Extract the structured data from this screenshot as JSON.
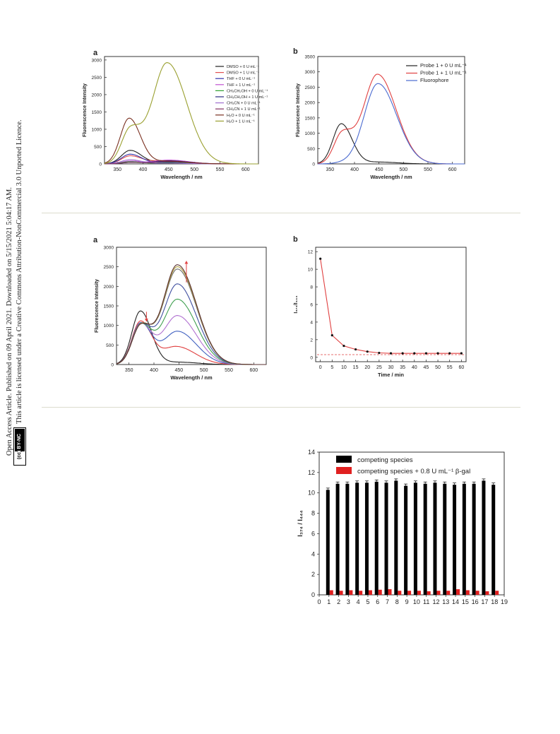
{
  "sidebar": {
    "line1": "Open Access Article. Published on 09 April 2021. Downloaded on 5/15/2021 5:04:17 AM.",
    "line2": "This article is licensed under a Creative Commons Attribution-NonCommercial 3.0 Unported Licence.",
    "badge": "(cc) BY-NC"
  },
  "colors": {
    "divider": "#dcdccd"
  },
  "chart_data": [
    {
      "panel": "a",
      "type": "line",
      "xlabel": "Wavelength / nm",
      "ylabel": "Fluorescence Intensity",
      "xlim": [
        325,
        625
      ],
      "ylim": [
        0,
        3100
      ],
      "xticks": [
        350,
        400,
        450,
        500,
        550,
        600
      ],
      "yticks": [
        0,
        500,
        1000,
        1500,
        2000,
        2500,
        3000
      ],
      "legend_position": "top-right",
      "series": [
        {
          "name": "DMSO + 0 U mL⁻¹",
          "color": "#222222",
          "peak": [
            375,
            390
          ],
          "peak2": [
            450,
            60
          ]
        },
        {
          "name": "DMSO + 1 U mL⁻¹",
          "color": "#e05050",
          "peak": [
            375,
            230
          ],
          "peak2": [
            445,
            100
          ]
        },
        {
          "name": "THF + 0 U mL⁻¹",
          "color": "#3333aa",
          "peak": [
            375,
            280
          ],
          "peak2": [
            450,
            40
          ]
        },
        {
          "name": "THF + 1 U mL⁻¹",
          "color": "#c050d0",
          "peak": [
            375,
            80
          ],
          "peak2": [
            450,
            110
          ]
        },
        {
          "name": "CH₃CH₂OH + 0 U mL⁻¹",
          "color": "#30a030",
          "peak": [
            375,
            60
          ],
          "peak2": [
            450,
            30
          ]
        },
        {
          "name": "CH₃CH₂OH + 1 U mL⁻¹",
          "color": "#2a2a80",
          "peak": [
            375,
            40
          ],
          "peak2": [
            450,
            90
          ]
        },
        {
          "name": "CH₃CN + 0 U mL⁻¹",
          "color": "#a070d0",
          "peak": [
            375,
            120
          ],
          "peak2": [
            450,
            20
          ]
        },
        {
          "name": "CH₃CN + 1 U mL⁻¹",
          "color": "#803060",
          "peak": [
            375,
            40
          ],
          "peak2": [
            450,
            70
          ]
        },
        {
          "name": "H₂O + 0 U mL⁻¹",
          "color": "#7a3020",
          "peak": [
            373,
            1320
          ],
          "peak2": [
            450,
            80
          ]
        },
        {
          "name": "H₂O + 1 U mL⁻¹",
          "color": "#9aa030",
          "peak": [
            375,
            980
          ],
          "peak2": [
            447,
            2920
          ]
        }
      ]
    },
    {
      "panel": "b",
      "type": "line",
      "xlabel": "Wavelength / nm",
      "ylabel": "Fluorescence Intensity",
      "xlim": [
        325,
        625
      ],
      "ylim": [
        0,
        3500
      ],
      "xticks": [
        350,
        400,
        450,
        500,
        550,
        600
      ],
      "yticks": [
        0,
        500,
        1000,
        1500,
        2000,
        2500,
        3000,
        3500
      ],
      "legend_position": "top-right",
      "series": [
        {
          "name": "Probe 1 + 0 U mL⁻¹",
          "color": "#222222",
          "peak": [
            373,
            1310
          ],
          "peak2": [
            450,
            60
          ]
        },
        {
          "name": "Probe 1 + 1 U mL⁻¹",
          "color": "#e04040",
          "peak": [
            375,
            980
          ],
          "peak2": [
            447,
            2920
          ]
        },
        {
          "name": "Fluorophore",
          "color": "#4a6ad0",
          "peak": [
            375,
            30
          ],
          "peak2": [
            448,
            2620
          ]
        }
      ]
    },
    {
      "panel": "a",
      "type": "line",
      "xlabel": "Wavelength / nm",
      "ylabel": "Fluorescence Intensity",
      "xlim": [
        325,
        625
      ],
      "ylim": [
        0,
        3000
      ],
      "xticks": [
        350,
        400,
        450,
        500,
        550,
        600
      ],
      "yticks": [
        0,
        500,
        1000,
        1500,
        2000,
        2500,
        3000
      ],
      "series": [
        {
          "color": "#222222",
          "peak": [
            373,
            1370
          ],
          "peak2": [
            450,
            60
          ]
        },
        {
          "color": "#e04040",
          "peak": [
            373,
            1100
          ],
          "peak2": [
            445,
            460
          ]
        },
        {
          "color": "#4060c0",
          "peak": [
            373,
            1050
          ],
          "peak2": [
            447,
            850
          ]
        },
        {
          "color": "#b070d0",
          "peak": [
            373,
            1020
          ],
          "peak2": [
            447,
            1250
          ]
        },
        {
          "color": "#40a050",
          "peak": [
            373,
            1000
          ],
          "peak2": [
            447,
            1670
          ]
        },
        {
          "color": "#4050a0",
          "peak": [
            373,
            990
          ],
          "peak2": [
            447,
            2060
          ]
        },
        {
          "color": "#707070",
          "peak": [
            373,
            980
          ],
          "peak2": [
            447,
            2440
          ]
        },
        {
          "color": "#b0a040",
          "peak": [
            373,
            970
          ],
          "peak2": [
            447,
            2500
          ]
        },
        {
          "color": "#5a3030",
          "peak": [
            373,
            960
          ],
          "peak2": [
            447,
            2550
          ]
        }
      ]
    },
    {
      "panel": "b",
      "type": "line",
      "xlabel": "Time / min",
      "ylabel": "I₃₇₄/I₄₄₄",
      "xlim": [
        -2,
        62
      ],
      "ylim": [
        -0.5,
        12.5
      ],
      "xticks": [
        0,
        5,
        10,
        15,
        20,
        25,
        30,
        35,
        40,
        45,
        50,
        55,
        60
      ],
      "yticks": [
        0,
        2,
        4,
        6,
        8,
        10,
        12
      ],
      "x": [
        0,
        5,
        10,
        15,
        20,
        25,
        30,
        35,
        40,
        45,
        50,
        55,
        60
      ],
      "y": [
        11.2,
        2.5,
        1.3,
        0.9,
        0.65,
        0.5,
        0.45,
        0.45,
        0.45,
        0.45,
        0.45,
        0.45,
        0.45
      ],
      "reference_line": 0.3
    },
    {
      "type": "bar",
      "ylabel": "I₃₇₄ / I₄₄₄",
      "xlim": [
        0,
        19
      ],
      "ylim": [
        0,
        14
      ],
      "xticks": [
        0,
        1,
        2,
        3,
        4,
        5,
        6,
        7,
        8,
        9,
        10,
        11,
        12,
        13,
        14,
        15,
        16,
        17,
        18,
        19
      ],
      "yticks": [
        0,
        2,
        4,
        6,
        8,
        10,
        12,
        14
      ],
      "categories": [
        1,
        2,
        3,
        4,
        5,
        6,
        7,
        8,
        9,
        10,
        11,
        12,
        13,
        14,
        15,
        16,
        17,
        18
      ],
      "legend_position": "top-left",
      "series": [
        {
          "name": "competing species",
          "color": "#000000",
          "values": [
            10.3,
            10.9,
            10.9,
            11.0,
            11.0,
            11.1,
            11.0,
            11.2,
            10.7,
            11.0,
            10.9,
            11.0,
            10.9,
            10.8,
            10.9,
            10.9,
            11.2,
            10.8
          ]
        },
        {
          "name": "competing species + 0.8 U mL⁻¹ β-gal",
          "color": "#e02020",
          "values": [
            0.45,
            0.4,
            0.45,
            0.4,
            0.45,
            0.5,
            0.55,
            0.4,
            0.4,
            0.4,
            0.35,
            0.4,
            0.4,
            0.55,
            0.45,
            0.4,
            0.35,
            0.4
          ]
        }
      ]
    }
  ]
}
